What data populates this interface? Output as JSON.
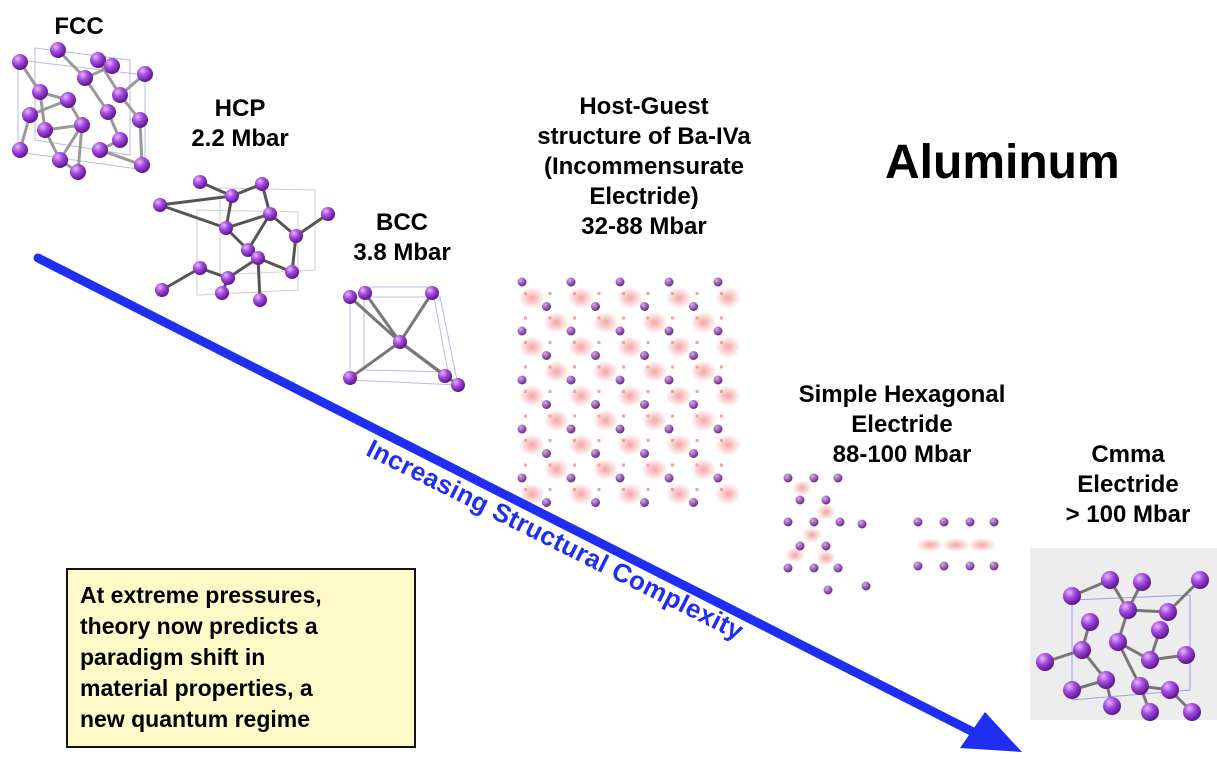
{
  "title": "Aluminum",
  "phases": [
    {
      "id": "fcc",
      "lines": [
        "FCC"
      ]
    },
    {
      "id": "hcp",
      "lines": [
        "HCP",
        "2.2 Mbar"
      ]
    },
    {
      "id": "bcc",
      "lines": [
        "BCC",
        "3.8 Mbar"
      ]
    },
    {
      "id": "host-guest",
      "lines": [
        "Host-Guest",
        "structure of Ba-IVa",
        "(Incommensurate",
        "Electride)",
        "32-88 Mbar"
      ]
    },
    {
      "id": "simple-hexagonal",
      "lines": [
        "Simple Hexagonal",
        "Electride",
        "88-100 Mbar"
      ]
    },
    {
      "id": "cmma",
      "lines": [
        "Cmma",
        "Electride",
        "> 100 Mbar"
      ]
    }
  ],
  "arrow": {
    "label": "Increasing Structural Complexity",
    "color": "#1f2ef0"
  },
  "note": {
    "lines": [
      "At extreme pressures,",
      "theory now predicts a",
      "paradigm shift in",
      "material properties, a",
      "new quantum regime"
    ]
  },
  "colors": {
    "atom": "#9b3fd6",
    "electride_density": "#f08a8a",
    "arrow": "#1f2ef0",
    "note_bg": "#fffac8"
  }
}
